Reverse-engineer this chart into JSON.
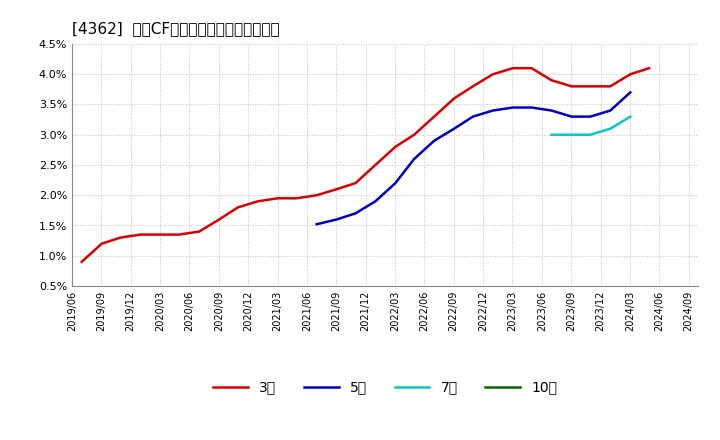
{
  "title": "[4362]  営業CFマージンの標準偏差の推移",
  "background_color": "#ffffff",
  "plot_bg_color": "#ffffff",
  "grid_color": "#bbbbbb",
  "ylim": [
    0.005,
    0.045
  ],
  "yticks": [
    0.005,
    0.01,
    0.015,
    0.02,
    0.025,
    0.03,
    0.035,
    0.04,
    0.045
  ],
  "legend": [
    "3年",
    "5年",
    "7年",
    "10年"
  ],
  "legend_colors": [
    "#dd0000",
    "#0000cc",
    "#00cccc",
    "#006600"
  ],
  "series_3y": {
    "color": "#dd0000",
    "x": [
      2019.5,
      2019.67,
      2019.83,
      2020.0,
      2020.17,
      2020.33,
      2020.5,
      2020.67,
      2020.83,
      2021.0,
      2021.17,
      2021.33,
      2021.5,
      2021.67,
      2021.83,
      2022.0,
      2022.17,
      2022.33,
      2022.5,
      2022.67,
      2022.83,
      2023.0,
      2023.17,
      2023.33,
      2023.5,
      2023.67,
      2023.83,
      2024.0,
      2024.17,
      2024.33
    ],
    "y": [
      0.009,
      0.012,
      0.013,
      0.0135,
      0.0135,
      0.0135,
      0.014,
      0.016,
      0.018,
      0.019,
      0.0195,
      0.0195,
      0.02,
      0.021,
      0.022,
      0.025,
      0.028,
      0.03,
      0.033,
      0.036,
      0.038,
      0.04,
      0.041,
      0.041,
      0.039,
      0.038,
      0.038,
      0.038,
      0.04,
      0.041
    ]
  },
  "series_5y": {
    "color": "#0000cc",
    "x": [
      2021.5,
      2021.67,
      2021.83,
      2022.0,
      2022.17,
      2022.33,
      2022.5,
      2022.67,
      2022.83,
      2023.0,
      2023.17,
      2023.33,
      2023.5,
      2023.67,
      2023.83,
      2024.0,
      2024.17
    ],
    "y": [
      0.0152,
      0.016,
      0.017,
      0.019,
      0.022,
      0.026,
      0.029,
      0.031,
      0.033,
      0.034,
      0.0345,
      0.0345,
      0.034,
      0.033,
      0.033,
      0.034,
      0.037
    ]
  },
  "series_7y": {
    "color": "#00cccc",
    "x": [
      2023.5,
      2023.67,
      2023.83,
      2024.0,
      2024.17
    ],
    "y": [
      0.03,
      0.03,
      0.03,
      0.031,
      0.033
    ]
  },
  "series_10y": {
    "color": "#006600",
    "x": [],
    "y": []
  },
  "xmin": 2019.417,
  "xmax": 2024.75,
  "xtick_positions": [
    2019.417,
    2019.667,
    2019.917,
    2020.167,
    2020.417,
    2020.667,
    2020.917,
    2021.167,
    2021.417,
    2021.667,
    2021.917,
    2022.167,
    2022.417,
    2022.667,
    2022.917,
    2023.167,
    2023.417,
    2023.667,
    2023.917,
    2024.167,
    2024.417,
    2024.667
  ],
  "xtick_labels": [
    "2019/06",
    "2019/09",
    "2019/12",
    "2020/03",
    "2020/06",
    "2020/09",
    "2020/12",
    "2021/03",
    "2021/06",
    "2021/09",
    "2021/12",
    "2022/03",
    "2022/06",
    "2022/09",
    "2022/12",
    "2023/03",
    "2023/06",
    "2023/09",
    "2023/12",
    "2024/03",
    "2024/06",
    "2024/09"
  ]
}
